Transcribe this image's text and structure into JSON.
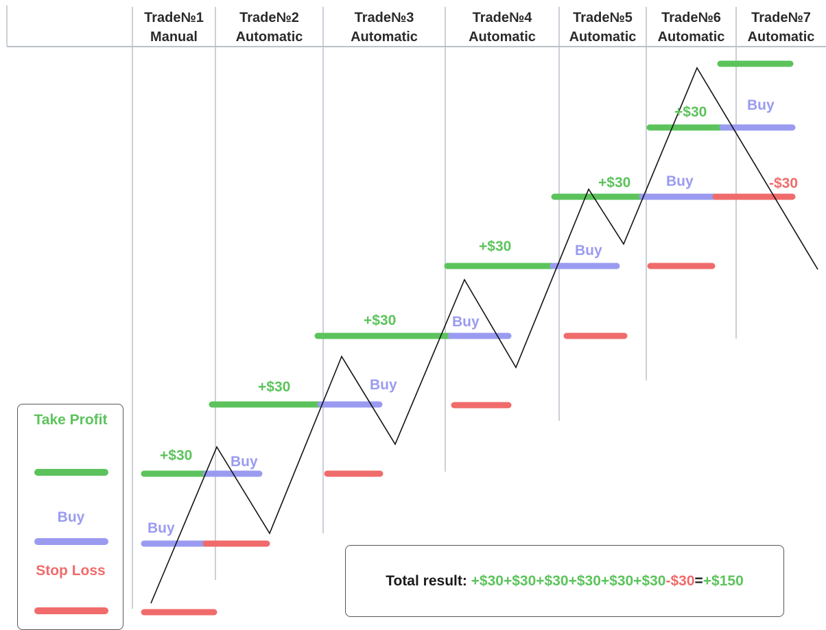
{
  "headers": [
    {
      "line1": "Trade№1",
      "line2": "Manual"
    },
    {
      "line1": "Trade№2",
      "line2": "Automatic"
    },
    {
      "line1": "Trade№3",
      "line2": "Automatic"
    },
    {
      "line1": "Trade№4",
      "line2": "Automatic"
    },
    {
      "line1": "Trade№5",
      "line2": "Automatic"
    },
    {
      "line1": "Trade№6",
      "line2": "Automatic"
    },
    {
      "line1": "Trade№7",
      "line2": "Automatic"
    }
  ],
  "labels": {
    "profit": "+$30",
    "buy": "Buy",
    "loss": "-$30"
  },
  "legend": {
    "take_profit": "Take Profit",
    "buy": "Buy",
    "stop_loss": "Stop Loss"
  },
  "total": {
    "prefix": "Total result: ",
    "gains": "+$30+$30+$30+$30+$30+$30",
    "loss": "-$30",
    "equals": "=",
    "result": "+$150"
  },
  "colors": {
    "take_profit": "#5cc35c",
    "buy": "#9a9bf0",
    "stop_loss": "#f06b6b",
    "price_line": "#111111",
    "grid": "#b9c0c8"
  }
}
